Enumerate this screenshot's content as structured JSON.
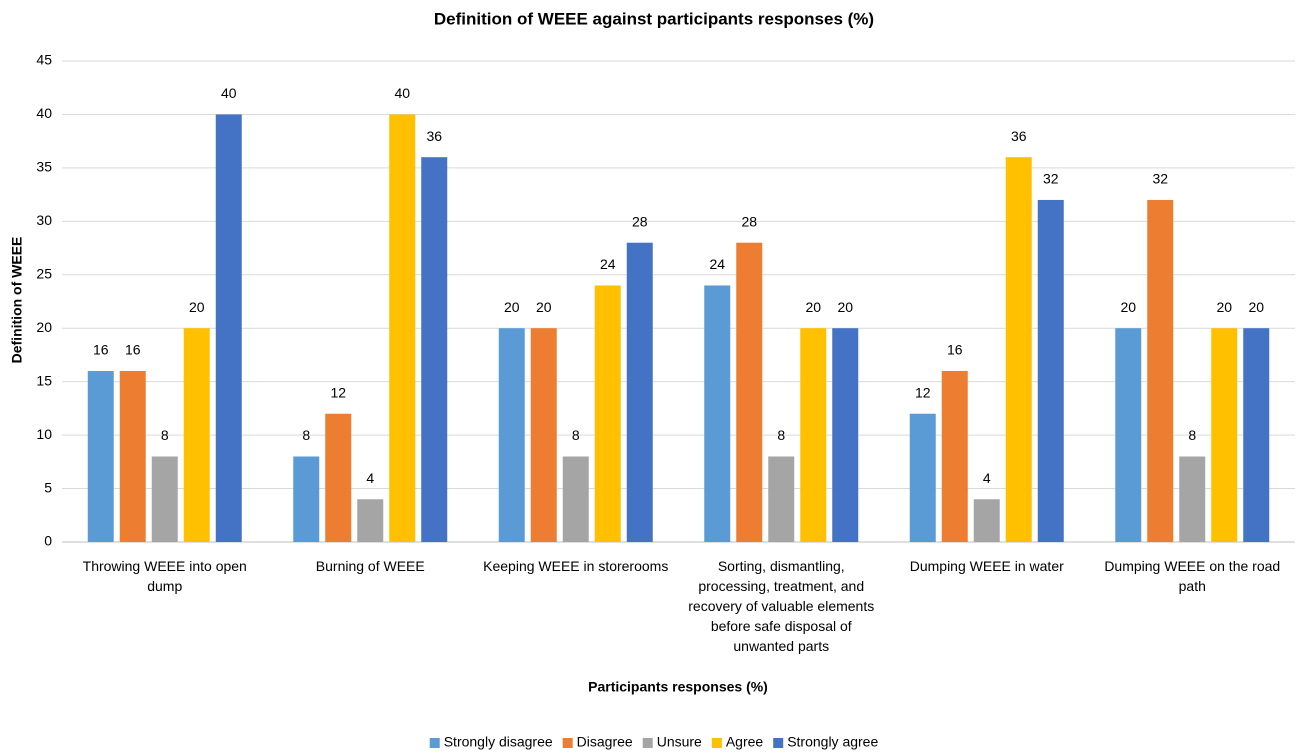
{
  "chart_data": {
    "type": "bar",
    "title": "Definition of WEEE against participants responses (%)",
    "x_label": "Participants responses (%)",
    "y_label": "Definition of WEEE",
    "categories": [
      "Throwing WEEE into open dump",
      "Burning of WEEE",
      "Keeping WEEE in storerooms",
      "Sorting, dismantling, processing, treatment, and recovery of valuable elements before safe disposal of unwanted parts",
      "Dumping WEEE in water",
      "Dumping WEEE on the road path"
    ],
    "series": [
      {
        "name": "Strongly disagree",
        "color": "#5b9bd5",
        "values": [
          16,
          8,
          20,
          24,
          12,
          20
        ]
      },
      {
        "name": "Disagree",
        "color": "#ed7d31",
        "values": [
          16,
          12,
          20,
          28,
          16,
          32
        ]
      },
      {
        "name": "Unsure",
        "color": "#a5a5a5",
        "values": [
          8,
          4,
          8,
          8,
          4,
          8
        ]
      },
      {
        "name": "Agree",
        "color": "#ffc000",
        "values": [
          20,
          40,
          24,
          20,
          36,
          20
        ]
      },
      {
        "name": "Strongly agree",
        "color": "#4472c4",
        "values": [
          40,
          36,
          28,
          20,
          32,
          20
        ]
      }
    ],
    "ylim": [
      0,
      45
    ],
    "yticks": [
      0,
      5,
      10,
      15,
      20,
      25,
      30,
      35,
      40,
      45
    ],
    "grid": true,
    "legend": "bottom"
  }
}
